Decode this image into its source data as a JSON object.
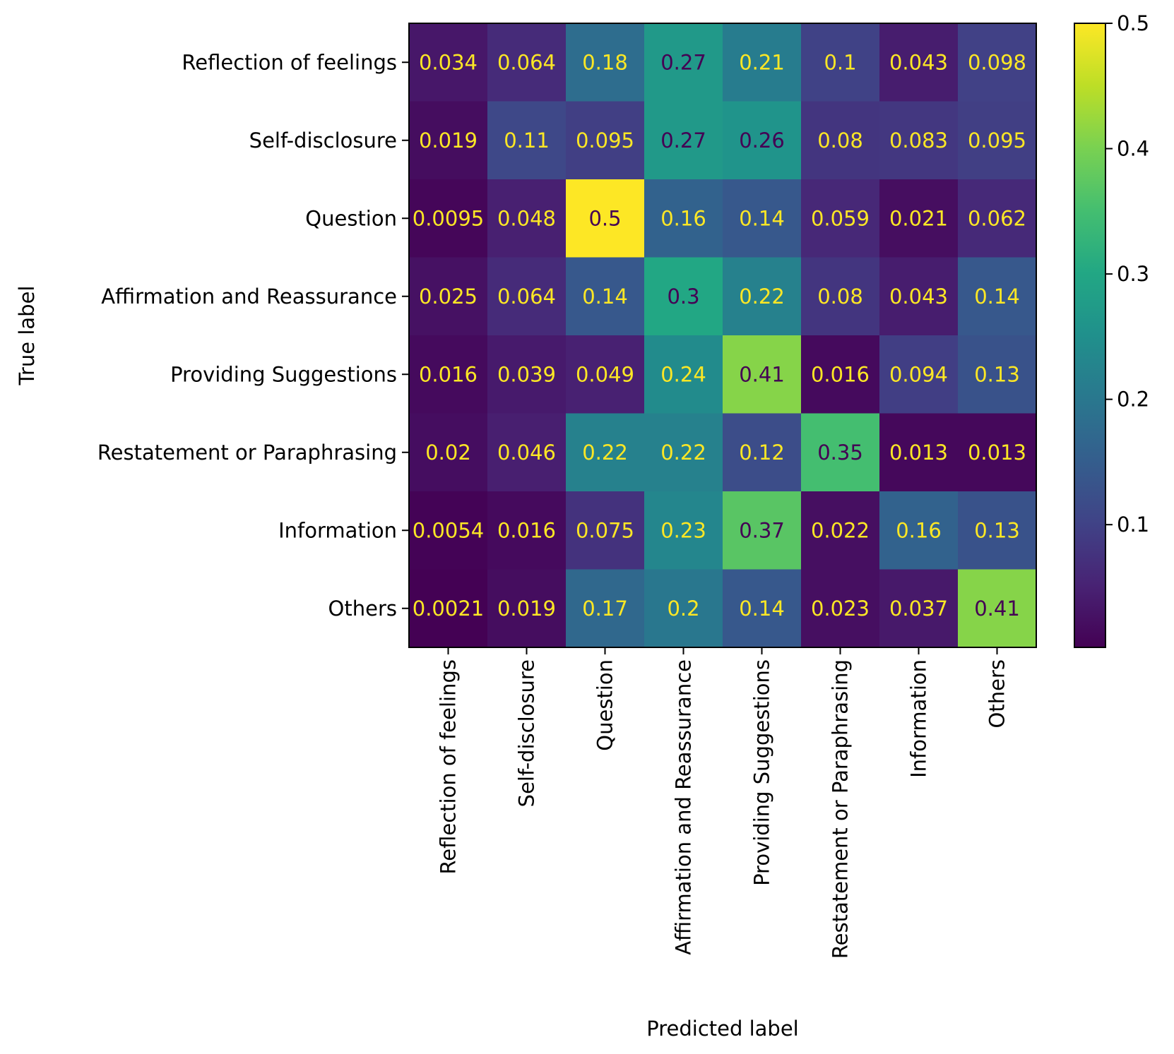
{
  "chart_data": {
    "type": "heatmap",
    "title": "",
    "xlabel": "Predicted label",
    "ylabel": "True label",
    "categories": [
      "Reflection of feelings",
      "Self-disclosure",
      "Question",
      "Affirmation and Reassurance",
      "Providing Suggestions",
      "Restatement or Paraphrasing",
      "Information",
      "Others"
    ],
    "values": [
      [
        0.034,
        0.064,
        0.18,
        0.27,
        0.21,
        0.1,
        0.043,
        0.098
      ],
      [
        0.019,
        0.11,
        0.095,
        0.27,
        0.26,
        0.08,
        0.083,
        0.095
      ],
      [
        0.0095,
        0.048,
        0.5,
        0.16,
        0.14,
        0.059,
        0.021,
        0.062
      ],
      [
        0.025,
        0.064,
        0.14,
        0.3,
        0.22,
        0.08,
        0.043,
        0.14
      ],
      [
        0.016,
        0.039,
        0.049,
        0.24,
        0.41,
        0.016,
        0.094,
        0.13
      ],
      [
        0.02,
        0.046,
        0.22,
        0.22,
        0.12,
        0.35,
        0.013,
        0.013
      ],
      [
        0.0054,
        0.016,
        0.075,
        0.23,
        0.37,
        0.022,
        0.16,
        0.13
      ],
      [
        0.0021,
        0.019,
        0.17,
        0.2,
        0.14,
        0.023,
        0.037,
        0.41
      ]
    ],
    "cell_labels": [
      [
        "0.034",
        "0.064",
        "0.18",
        "0.27",
        "0.21",
        "0.1",
        "0.043",
        "0.098"
      ],
      [
        "0.019",
        "0.11",
        "0.095",
        "0.27",
        "0.26",
        "0.08",
        "0.083",
        "0.095"
      ],
      [
        "0.0095",
        "0.048",
        "0.5",
        "0.16",
        "0.14",
        "0.059",
        "0.021",
        "0.062"
      ],
      [
        "0.025",
        "0.064",
        "0.14",
        "0.3",
        "0.22",
        "0.08",
        "0.043",
        "0.14"
      ],
      [
        "0.016",
        "0.039",
        "0.049",
        "0.24",
        "0.41",
        "0.016",
        "0.094",
        "0.13"
      ],
      [
        "0.02",
        "0.046",
        "0.22",
        "0.22",
        "0.12",
        "0.35",
        "0.013",
        "0.013"
      ],
      [
        "0.0054",
        "0.016",
        "0.075",
        "0.23",
        "0.37",
        "0.022",
        "0.16",
        "0.13"
      ],
      [
        "0.0021",
        "0.019",
        "0.17",
        "0.2",
        "0.14",
        "0.023",
        "0.037",
        "0.41"
      ]
    ],
    "colormap": "viridis",
    "vmin": 0.0021,
    "vmax": 0.5,
    "colorbar_ticks": [
      0.1,
      0.2,
      0.3,
      0.4,
      0.5
    ],
    "colorbar_tick_labels": [
      "0.1",
      "0.2",
      "0.3",
      "0.4",
      "0.5"
    ],
    "text_colors": {
      "light": "#fde725",
      "dark": "#440154"
    }
  }
}
